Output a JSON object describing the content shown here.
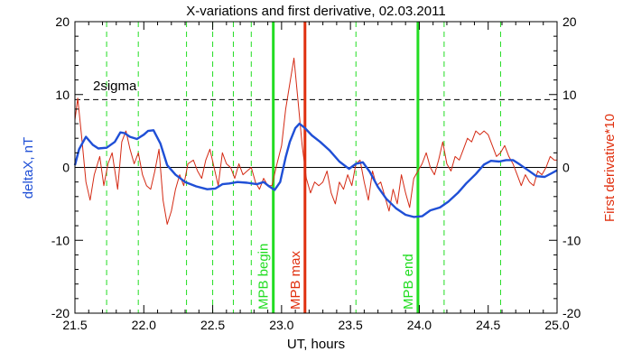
{
  "chart_data": {
    "type": "line",
    "title": "X-variations and first derivative, 02.03.2011",
    "xlabel": "UT, hours",
    "ylabel_left": "deltaX, nT",
    "ylabel_right": "First derivative*10",
    "xlim": [
      21.5,
      25.0
    ],
    "ylim_left": [
      -20,
      20
    ],
    "ylim_right": [
      -20,
      20
    ],
    "x_ticks": [
      "21.5",
      "22.0",
      "22.5",
      "23.0",
      "23.5",
      "24.0",
      "24.5",
      "25.0"
    ],
    "y_ticks_left": [
      "-20",
      "-10",
      "0",
      "10",
      "20"
    ],
    "y_ticks_right": [
      "-20",
      "-10",
      "0",
      "10",
      "20"
    ],
    "threshold": {
      "label": "2sigma",
      "value": 9.3
    },
    "zero_line": 0,
    "colors": {
      "deltaX": "#1f4fd6",
      "derivative": "#d42a14",
      "mpb": "#22dd22",
      "max": "#e0300f",
      "axes": "#000000"
    },
    "dashed_verticals": [
      21.73,
      21.96,
      22.31,
      22.5,
      22.65,
      22.78,
      23.54,
      24.18,
      24.59
    ],
    "markers": [
      {
        "label": "MPB begin",
        "x": 22.94,
        "kind": "mpb"
      },
      {
        "label": "MPB max",
        "x": 23.17,
        "kind": "max"
      },
      {
        "label": "MPB end",
        "x": 23.99,
        "kind": "mpb"
      }
    ],
    "series": [
      {
        "name": "deltaX",
        "axis": "left",
        "x": [
          21.5,
          21.53,
          21.58,
          21.63,
          21.67,
          21.73,
          21.79,
          21.83,
          21.86,
          21.9,
          21.95,
          22.0,
          22.03,
          22.07,
          22.12,
          22.17,
          22.23,
          22.3,
          22.38,
          22.46,
          22.52,
          22.57,
          22.62,
          22.68,
          22.75,
          22.82,
          22.87,
          22.91,
          22.95,
          22.99,
          23.03,
          23.06,
          23.1,
          23.13,
          23.17,
          23.22,
          23.28,
          23.35,
          23.42,
          23.49,
          23.54,
          23.59,
          23.64,
          23.7,
          23.76,
          23.83,
          23.9,
          23.96,
          24.02,
          24.08,
          24.15,
          24.21,
          24.28,
          24.34,
          24.41,
          24.47,
          24.52,
          24.58,
          24.63,
          24.68,
          24.73,
          24.79,
          24.85,
          24.91,
          24.96,
          25.0
        ],
        "values": [
          0.3,
          2.5,
          4.2,
          3.1,
          2.6,
          2.7,
          3.5,
          4.8,
          4.7,
          4.2,
          3.9,
          4.5,
          5.0,
          5.1,
          3.3,
          0.3,
          -1.0,
          -2.0,
          -2.6,
          -3.0,
          -2.9,
          -2.3,
          -2.2,
          -2.0,
          -2.1,
          -2.3,
          -2.0,
          -2.6,
          -3.1,
          -2.0,
          1.4,
          3.5,
          5.4,
          6.0,
          5.4,
          4.4,
          3.5,
          2.3,
          0.8,
          -0.2,
          0.5,
          0.7,
          -0.6,
          -2.7,
          -4.3,
          -5.6,
          -6.5,
          -6.8,
          -6.7,
          -5.9,
          -5.5,
          -4.7,
          -3.5,
          -2.2,
          -0.9,
          0.4,
          0.9,
          0.8,
          1.0,
          1.0,
          0.4,
          -0.4,
          -1.2,
          -1.3,
          -0.8,
          -0.4
        ]
      },
      {
        "name": "First derivative*10",
        "axis": "right",
        "x": [
          21.5,
          21.52,
          21.55,
          21.58,
          21.61,
          21.64,
          21.68,
          21.71,
          21.74,
          21.77,
          21.81,
          21.84,
          21.87,
          21.9,
          21.93,
          21.96,
          21.99,
          22.02,
          22.05,
          22.08,
          22.11,
          22.14,
          22.17,
          22.2,
          22.23,
          22.26,
          22.29,
          22.32,
          22.36,
          22.39,
          22.42,
          22.45,
          22.48,
          22.51,
          22.54,
          22.57,
          22.6,
          22.63,
          22.66,
          22.69,
          22.72,
          22.75,
          22.78,
          22.81,
          22.84,
          22.87,
          22.9,
          22.93,
          22.96,
          23.0,
          23.03,
          23.06,
          23.09,
          23.12,
          23.15,
          23.18,
          23.21,
          23.24,
          23.27,
          23.3,
          23.33,
          23.36,
          23.39,
          23.42,
          23.45,
          23.48,
          23.51,
          23.54,
          23.57,
          23.6,
          23.63,
          23.66,
          23.69,
          23.72,
          23.75,
          23.78,
          23.81,
          23.84,
          23.87,
          23.9,
          23.93,
          23.96,
          23.99,
          24.02,
          24.05,
          24.08,
          24.11,
          24.14,
          24.17,
          24.2,
          24.23,
          24.26,
          24.29,
          24.32,
          24.35,
          24.38,
          24.41,
          24.44,
          24.47,
          24.5,
          24.53,
          24.56,
          24.59,
          24.62,
          24.65,
          24.68,
          24.71,
          24.74,
          24.77,
          24.8,
          24.83,
          24.86,
          24.89,
          24.92,
          24.95,
          24.98,
          25.0
        ],
        "values": [
          6.5,
          9.5,
          4.0,
          -2.0,
          -4.5,
          -1.0,
          1.5,
          -2.5,
          0.5,
          2.0,
          -3.0,
          3.5,
          5.0,
          2.5,
          0.5,
          2.0,
          -1.0,
          -2.5,
          -3.0,
          -0.5,
          2.5,
          -4.5,
          -7.8,
          -6.0,
          -3.0,
          -1.0,
          -2.5,
          0.5,
          1.0,
          -0.5,
          -1.5,
          1.0,
          2.5,
          0.0,
          -2.5,
          2.0,
          0.5,
          0.0,
          -1.5,
          0.5,
          -1.0,
          -0.5,
          0.0,
          -2.0,
          -3.0,
          -1.5,
          -2.5,
          -2.5,
          0.0,
          3.0,
          8.0,
          11.5,
          15.0,
          9.0,
          3.0,
          -1.5,
          -3.5,
          -2.0,
          -2.5,
          -2.0,
          -0.5,
          -3.5,
          -5.0,
          -2.0,
          -3.0,
          -1.0,
          -2.5,
          0.5,
          1.0,
          -2.0,
          -4.5,
          -0.5,
          -2.5,
          -2.0,
          -4.0,
          -6.0,
          -3.0,
          -5.0,
          -1.0,
          -3.5,
          -5.5,
          -1.5,
          -0.5,
          0.5,
          2.0,
          0.0,
          -1.0,
          1.0,
          3.5,
          0.5,
          -0.5,
          1.5,
          1.0,
          2.5,
          4.0,
          3.5,
          5.0,
          4.5,
          5.0,
          4.5,
          3.0,
          1.5,
          2.0,
          3.0,
          1.5,
          0.5,
          -1.0,
          -2.5,
          -1.0,
          -2.0,
          -2.5,
          -0.5,
          -1.0,
          0.0,
          1.5,
          1.0,
          1.0
        ]
      }
    ]
  }
}
